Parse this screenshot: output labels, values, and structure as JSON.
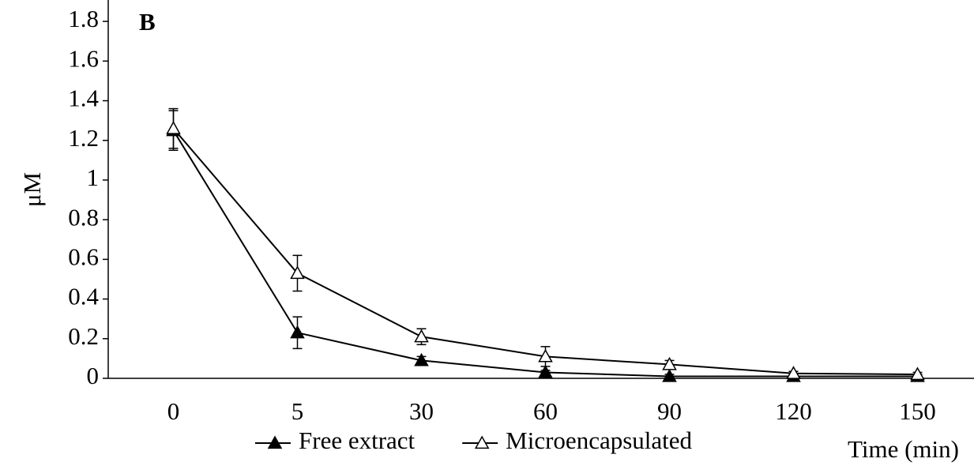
{
  "chart_data": {
    "type": "line",
    "title": "B",
    "y_label": "μM",
    "x_label": "Time (min)",
    "categories": [
      "0",
      "5",
      "30",
      "60",
      "90",
      "120",
      "150"
    ],
    "series": [
      {
        "name": "Free extract",
        "color": "#000000",
        "marker_fill": "#000000",
        "values": [
          1.25,
          0.23,
          0.09,
          0.03,
          0.01,
          0.01,
          0.01
        ],
        "errors": [
          0.1,
          0.08,
          0.02,
          0.01,
          0.01,
          0.01,
          0.01
        ]
      },
      {
        "name": "Microencapsulated",
        "color": "#000000",
        "marker_fill": "#ffffff",
        "values": [
          1.26,
          0.53,
          0.21,
          0.11,
          0.07,
          0.025,
          0.02
        ],
        "errors": [
          0.1,
          0.09,
          0.04,
          0.05,
          0.02,
          0.01,
          0.01
        ]
      }
    ],
    "ylim": [
      0,
      1.9
    ],
    "yticks": [
      0,
      0.2,
      0.4,
      0.6,
      0.8,
      1,
      1.2,
      1.4,
      1.6,
      1.8
    ],
    "grid": false
  }
}
